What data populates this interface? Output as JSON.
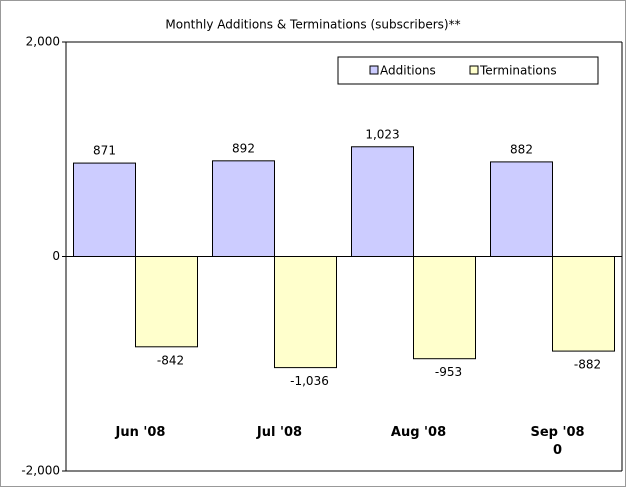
{
  "chart_data": {
    "type": "bar",
    "title": "Monthly Additions & Terminations (subscribers)**",
    "categories": [
      "Jun '08",
      "Jul '08",
      "Aug '08",
      "Sep '08\n0"
    ],
    "series": [
      {
        "name": "Additions",
        "color": "#ccccff",
        "values": [
          871,
          892,
          1023,
          882
        ],
        "value_labels": [
          "871",
          "892",
          "1,023",
          "882"
        ]
      },
      {
        "name": "Terminations",
        "color": "#ffffcc",
        "values": [
          -842,
          -1036,
          -953,
          -882
        ],
        "value_labels": [
          "-842",
          "-1,036",
          "-953",
          "-882"
        ]
      }
    ],
    "ylim": [
      -2000,
      2000
    ],
    "yticks": [
      {
        "value": -2000,
        "label": "-2,000"
      },
      0,
      {
        "value": 2000,
        "label": "2,000"
      }
    ],
    "legend": "top-right"
  }
}
